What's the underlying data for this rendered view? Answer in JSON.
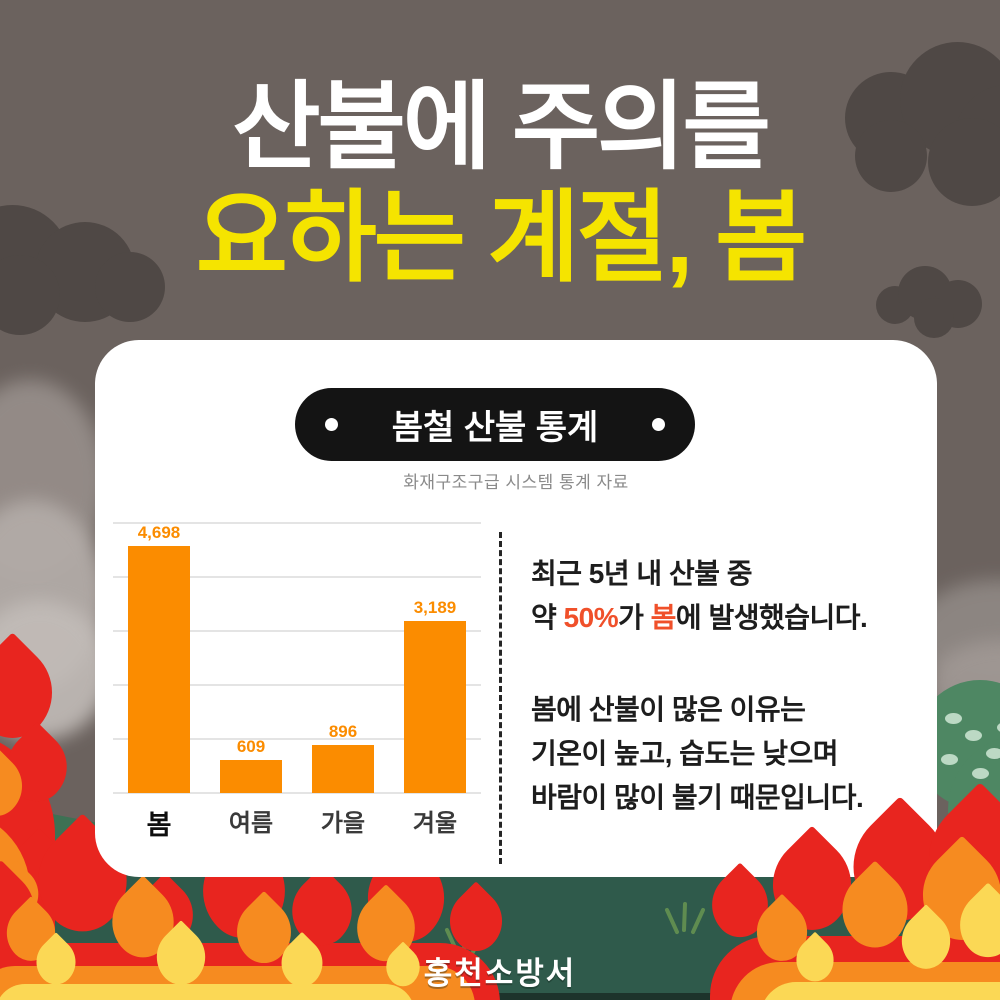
{
  "header": {
    "title_line1": "산불에 주의를",
    "title_line2": "요하는 계절, 봄"
  },
  "card": {
    "badge": {
      "label": "봄철 산불 통계"
    },
    "caption": "화재구조구급 시스템 통계 자료",
    "info": {
      "highlight_color": "#f0502a",
      "paragraph1": {
        "lines": [
          {
            "segments": [
              {
                "text": "최근 5년 내 산불 중",
                "highlight": false
              }
            ]
          },
          {
            "segments": [
              {
                "text": "약 ",
                "highlight": false
              },
              {
                "text": "50%",
                "highlight": true
              },
              {
                "text": "가 ",
                "highlight": false
              },
              {
                "text": "봄",
                "highlight": true
              },
              {
                "text": "에 발생했습니다.",
                "highlight": false
              }
            ]
          }
        ]
      },
      "paragraph2": {
        "lines": [
          {
            "segments": [
              {
                "text": "봄에 산불이 많은 이유는",
                "highlight": false
              }
            ]
          },
          {
            "segments": [
              {
                "text": "기온이 높고, 습도는 낮으며",
                "highlight": false
              }
            ]
          },
          {
            "segments": [
              {
                "text": "바람이 많이 불기 때문입니다.",
                "highlight": false
              }
            ]
          }
        ]
      }
    }
  },
  "chart_data": {
    "type": "bar",
    "title": "봄철 산불 통계",
    "source": "화재구조구급 시스템 통계 자료",
    "categories": [
      "봄",
      "여름",
      "가을",
      "겨울"
    ],
    "values": [
      4698,
      609,
      896,
      3189
    ],
    "value_labels": [
      "4,698",
      "609",
      "896",
      "3,189"
    ],
    "emphasized_category": "봄",
    "xlabel": "",
    "ylabel": "",
    "ylim": [
      0,
      5000
    ],
    "gridline_step": 1000,
    "grid": true,
    "legend": false,
    "bar_color": "#fb8c00"
  },
  "footer": {
    "label": "홍천소방서"
  },
  "palette": {
    "background": "#6b625e",
    "cloud_dark": "#4f4845",
    "card": "#ffffff",
    "badge_bg": "#141414",
    "title_white": "#ffffff",
    "title_yellow": "#f5e400",
    "bar_orange": "#fb8c00",
    "highlight_red_orange": "#f0502a",
    "ground_green": "#2f5a4b",
    "hill_green": "#3e7154",
    "bush_green": "#4e8763",
    "bush_dot_green": "#bcd9c4",
    "flame_red": "#e8251f",
    "flame_orange": "#f68b20",
    "flame_yellow": "#fbd855"
  }
}
